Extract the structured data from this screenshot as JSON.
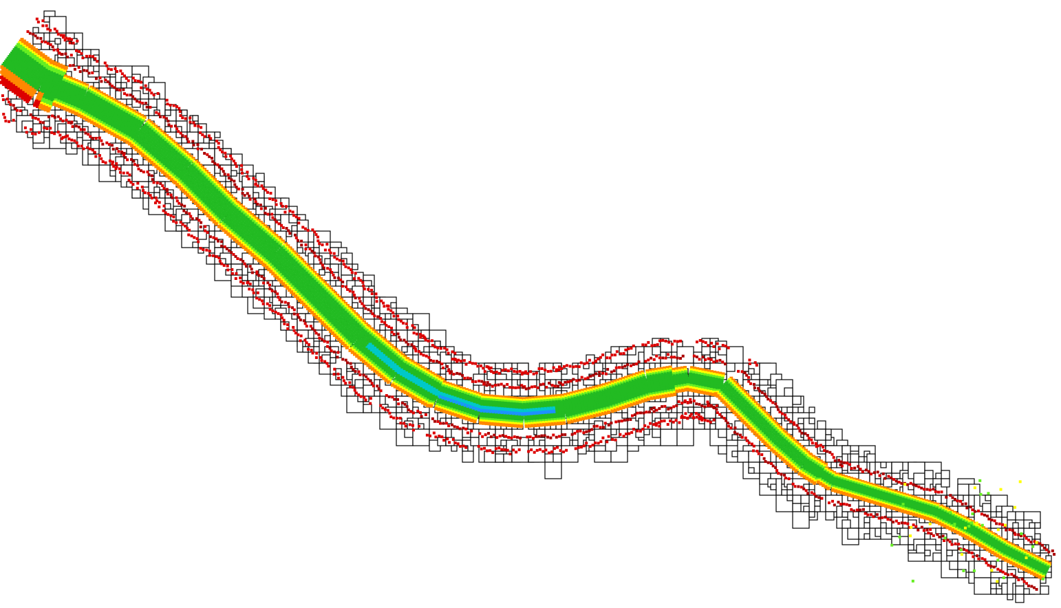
{
  "view": {
    "background": "#ffffff",
    "grid_line_color": "#000000",
    "cell_fill": "#ffffff"
  },
  "legend_colors": {
    "deep": "#1e90ff",
    "mid_deep": "#00c8c8",
    "mid": "#22bb22",
    "light": "#66ee22",
    "shallow": "#ffff00",
    "very_shallow": "#ff8800",
    "edge": "#dd0000",
    "dark_edge": "#aa0000"
  }
}
